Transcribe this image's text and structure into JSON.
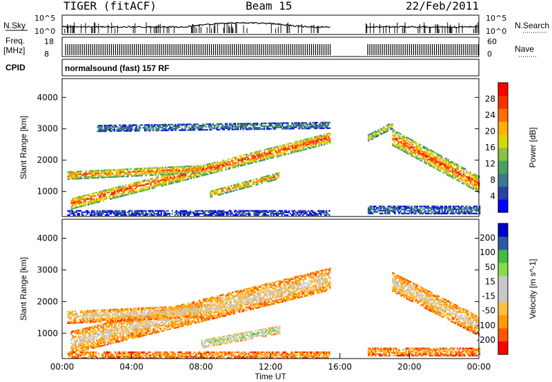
{
  "header": {
    "radar": "TIGER (fitACF)",
    "beam": "Beam 15",
    "date": "22/Feb/2011"
  },
  "panels": {
    "nsky": {
      "label": "N.Sky",
      "ticks": [
        "10^5",
        "10^0"
      ],
      "right_label": "N.Search",
      "right_ticks": [
        "10^5",
        "10^0"
      ]
    },
    "freq": {
      "label_line1": "Freq.",
      "label_line2": "[MHz]",
      "ticks": [
        "18",
        "8"
      ],
      "right_label": "Nave",
      "right_ticks": [
        "60",
        "0"
      ]
    },
    "cpid": {
      "label": "CPID",
      "value": "normalsound (fast) 157 RF"
    }
  },
  "chart_data": [
    {
      "type": "heatmap",
      "name": "Power",
      "ylabel": "Slant Range [km]",
      "yticks": [
        "4000",
        "3000",
        "2000",
        "1000"
      ],
      "ylim": [
        200,
        4600
      ],
      "xlim": [
        0,
        24
      ],
      "data_gap_hours": [
        15.5,
        17.5
      ],
      "colorbar": {
        "label": "Power [dB]",
        "ticks": [
          "28",
          "24",
          "20",
          "16",
          "12",
          "8",
          "4"
        ],
        "colors": [
          "#0000ff",
          "#2a3fa8",
          "#3a7a8c",
          "#4aa060",
          "#8cc040",
          "#d8d800",
          "#ffb000",
          "#ff7000",
          "#ff3000",
          "#ff0000"
        ]
      },
      "bands": [
        {
          "t0": 0.5,
          "r0": 600,
          "t1": 15.4,
          "r1": 2700,
          "w": 350,
          "level": 0.85
        },
        {
          "t0": 0.3,
          "r0": 1500,
          "t1": 8.0,
          "r1": 1700,
          "w": 250,
          "level": 0.8
        },
        {
          "t0": 2.0,
          "r0": 3000,
          "t1": 15.4,
          "r1": 3100,
          "w": 200,
          "level": 0.3
        },
        {
          "t0": 8.5,
          "r0": 900,
          "t1": 12.5,
          "r1": 1500,
          "w": 200,
          "level": 0.75
        },
        {
          "t0": 0.3,
          "r0": 300,
          "t1": 15.4,
          "r1": 300,
          "w": 150,
          "level": 0.2
        },
        {
          "t0": 19.0,
          "r0": 2700,
          "t1": 24.0,
          "r1": 1200,
          "w": 500,
          "level": 0.85
        },
        {
          "t0": 17.6,
          "r0": 2700,
          "t1": 19.0,
          "r1": 3100,
          "w": 200,
          "level": 0.6
        },
        {
          "t0": 17.6,
          "r0": 400,
          "t1": 24.0,
          "r1": 400,
          "w": 250,
          "level": 0.25
        }
      ]
    },
    {
      "type": "heatmap",
      "name": "Velocity",
      "ylabel": "Slant Range [km]",
      "yticks": [
        "4000",
        "3000",
        "2000",
        "1000"
      ],
      "ylim": [
        200,
        4600
      ],
      "xlim": [
        0,
        24
      ],
      "xlabel": "Time UT",
      "xticks": [
        "00:00",
        "04:00",
        "08:00",
        "12:00",
        "16:00",
        "20:00",
        "00:00"
      ],
      "colorbar": {
        "label": "Velocity [m s^-1]",
        "ticks": [
          "200",
          "100",
          "50",
          "15",
          "-15",
          "-50",
          "-100",
          "-200"
        ],
        "colors": [
          "#ff0000",
          "#ff5500",
          "#ff9a00",
          "#ffbe40",
          "#c8c8c8",
          "#c8c8c8",
          "#88dd44",
          "#44bb44",
          "#2a5aa0",
          "#0000cc"
        ]
      },
      "bands": [
        {
          "t0": 0.5,
          "r0": 700,
          "t1": 15.4,
          "r1": 2700,
          "w": 700,
          "level": 0.45
        },
        {
          "t0": 0.3,
          "r0": 1500,
          "t1": 8.0,
          "r1": 1700,
          "w": 400,
          "level": 0.45
        },
        {
          "t0": 8.0,
          "r0": 650,
          "t1": 12.5,
          "r1": 1100,
          "w": 250,
          "level": 0.7
        },
        {
          "t0": 0.3,
          "r0": 300,
          "t1": 15.4,
          "r1": 300,
          "w": 200,
          "level": 0.3
        },
        {
          "t0": 19.0,
          "r0": 2600,
          "t1": 24.0,
          "r1": 1200,
          "w": 600,
          "level": 0.45
        },
        {
          "t0": 17.6,
          "r0": 400,
          "t1": 24.0,
          "r1": 400,
          "w": 250,
          "level": 0.3
        }
      ]
    }
  ]
}
